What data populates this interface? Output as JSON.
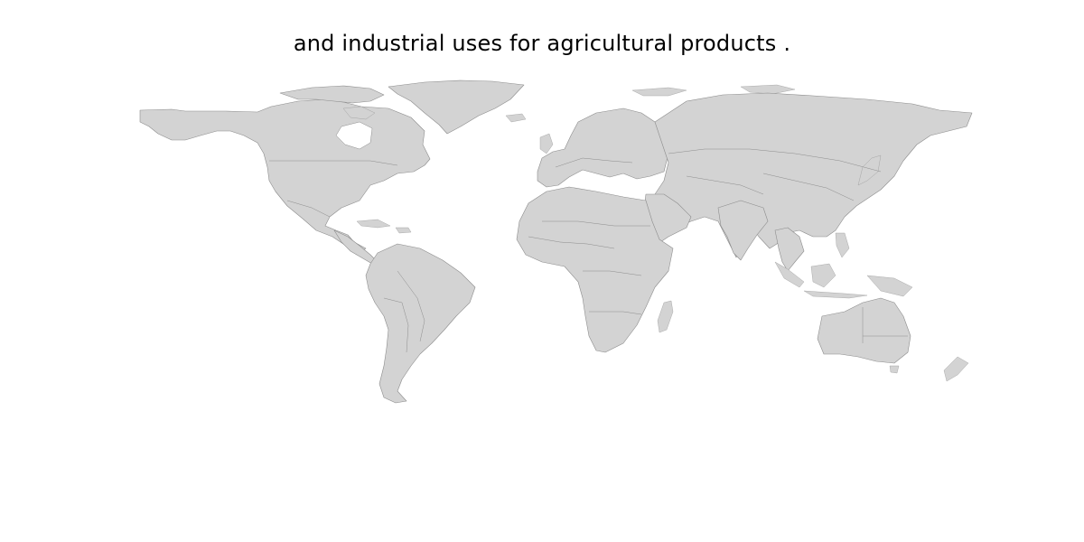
{
  "map": {
    "title": "and industrial uses for agricultural products .",
    "projection": "equirectangular",
    "land_color": "#d3d3d3",
    "border_color": "#8c8c8c",
    "background_color": "#ffffff"
  }
}
